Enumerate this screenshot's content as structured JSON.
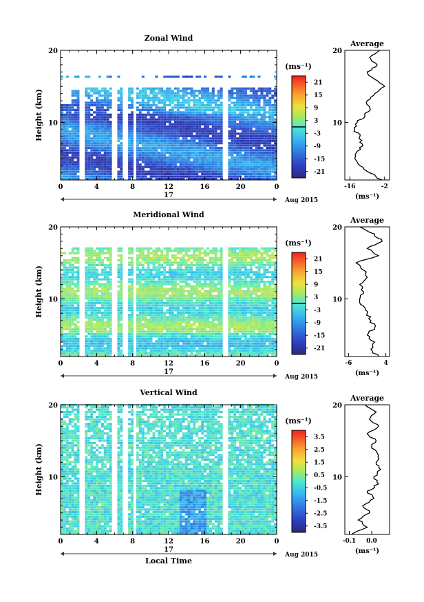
{
  "chart_data": [
    {
      "type": "heatmap",
      "title": "Zonal Wind",
      "ylabel": "Height (km)",
      "x_tick_labels": [
        "0",
        "4",
        "8",
        "12",
        "16",
        "20",
        "0"
      ],
      "y_tick_labels": [
        "10",
        "20"
      ],
      "xlim": [
        0,
        24
      ],
      "ylim": [
        2,
        20
      ],
      "day_label": "17",
      "date_label": "Aug 2015",
      "colorbar": {
        "unit": "(ms⁻¹)",
        "tick_labels": [
          "21",
          "15",
          "9",
          "3",
          "-3",
          "-9",
          "-15",
          "-21"
        ],
        "range": [
          -24,
          24
        ],
        "zero_line_at": 0
      },
      "average_profile": {
        "title": "Average",
        "x_tick_labels": [
          "-16",
          "-2"
        ],
        "xlim": [
          -18,
          0
        ],
        "xlabel": "(ms⁻¹)",
        "y_tick_labels": [
          "10",
          "20"
        ],
        "height": [
          2,
          3,
          4,
          5,
          6,
          7,
          8,
          9,
          10,
          11,
          12,
          13,
          14,
          15,
          16,
          17,
          18,
          19,
          20
        ],
        "values": [
          -3,
          -8,
          -12,
          -14,
          -13,
          -11,
          -12,
          -14,
          -13,
          -10,
          -8,
          -9,
          -6,
          -2,
          -6,
          -9,
          -5,
          -8,
          -4
        ]
      }
    },
    {
      "type": "heatmap",
      "title": "Meridional Wind",
      "ylabel": "Height (km)",
      "x_tick_labels": [
        "0",
        "4",
        "8",
        "12",
        "16",
        "20",
        "0"
      ],
      "y_tick_labels": [
        "10",
        "20"
      ],
      "xlim": [
        0,
        24
      ],
      "ylim": [
        2,
        20
      ],
      "day_label": "17",
      "date_label": "Aug 2015",
      "colorbar": {
        "unit": "(ms⁻¹)",
        "tick_labels": [
          "21",
          "15",
          "9",
          "3",
          "-3",
          "-9",
          "-15",
          "-21"
        ],
        "range": [
          -24,
          24
        ],
        "zero_line_at": 0
      },
      "average_profile": {
        "title": "Average",
        "x_tick_labels": [
          "-6",
          "4"
        ],
        "xlim": [
          -7,
          5
        ],
        "xlabel": "(ms⁻¹)",
        "y_tick_labels": [
          "10",
          "20"
        ],
        "height": [
          2,
          3,
          4,
          5,
          6,
          7,
          8,
          9,
          10,
          11,
          12,
          13,
          14,
          15,
          16,
          17,
          18,
          19,
          20
        ],
        "values": [
          2,
          0,
          1,
          -1,
          1,
          0,
          -1,
          -2,
          -3,
          -2,
          -3,
          -1,
          -2,
          -4,
          2,
          -1,
          3,
          1,
          -3
        ]
      }
    },
    {
      "type": "heatmap",
      "title": "Vertical Wind",
      "ylabel": "Height (km)",
      "xlabel": "Local Time",
      "x_tick_labels": [
        "0",
        "4",
        "8",
        "12",
        "16",
        "20",
        "0"
      ],
      "y_tick_labels": [
        "10",
        "20"
      ],
      "xlim": [
        0,
        24
      ],
      "ylim": [
        2,
        20
      ],
      "day_label": "17",
      "date_label": "Aug 2015",
      "colorbar": {
        "unit": "(ms⁻¹)",
        "tick_labels": [
          "3.5",
          "2.5",
          "1.5",
          "0.5",
          "-0.5",
          "-1.5",
          "-2.5",
          "-3.5"
        ],
        "range": [
          -4,
          4
        ]
      },
      "average_profile": {
        "title": "Average",
        "x_tick_labels": [
          "-0.1",
          "0.0"
        ],
        "xlim": [
          -0.12,
          0.08
        ],
        "xlabel": "(ms⁻¹)",
        "y_tick_labels": [
          "10",
          "20"
        ],
        "height": [
          2,
          3,
          4,
          5,
          6,
          7,
          8,
          9,
          10,
          11,
          12,
          13,
          14,
          15,
          16,
          17,
          18,
          19,
          20
        ],
        "values": [
          -0.09,
          -0.02,
          -0.06,
          -0.01,
          -0.04,
          0.01,
          -0.02,
          0.03,
          0.01,
          0.04,
          0.02,
          0.03,
          0.0,
          0.02,
          -0.02,
          0.03,
          -0.01,
          0.02,
          -0.03
        ]
      }
    }
  ]
}
